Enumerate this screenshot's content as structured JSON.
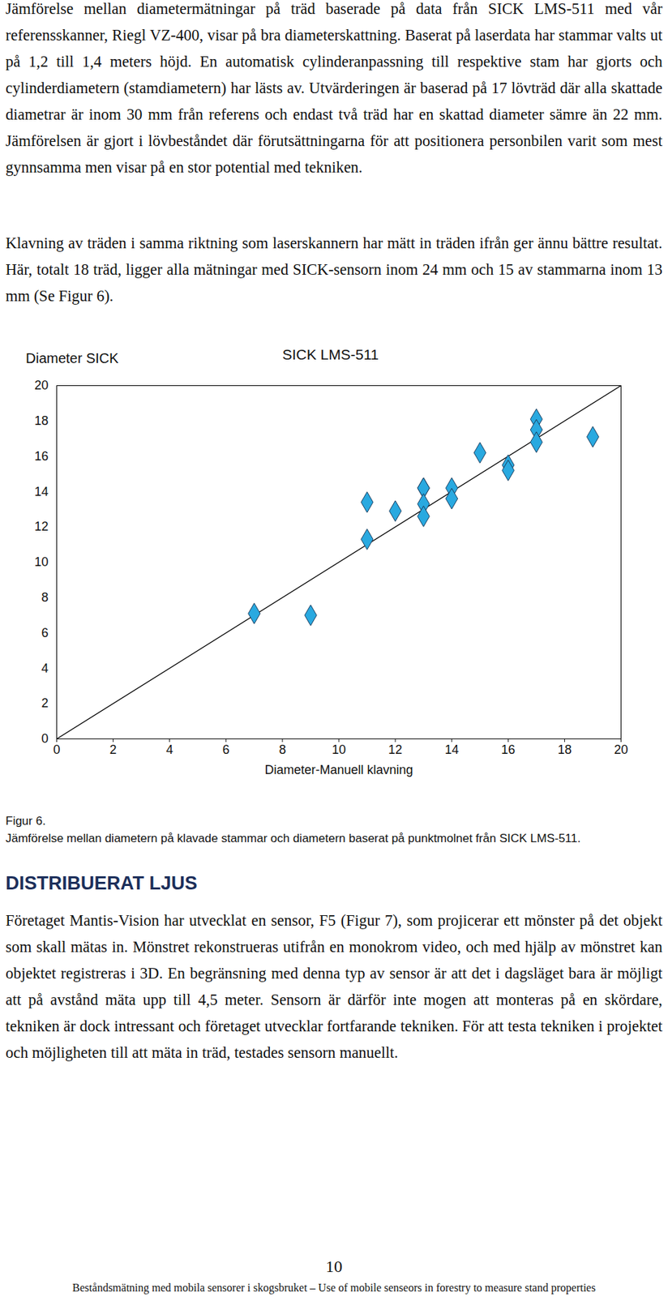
{
  "document": {
    "paragraphs_before": [
      "Jämförelse mellan diametermätningar på träd baserade på data från SICK LMS-511 med vår referensskanner, Riegl VZ-400, visar på bra diameterskattning. Baserat på laserdata har stammar valts ut på 1,2 till 1,4 meters höjd. En automatisk cylinderanpassning till respektive stam har gjorts och cylinderdiametern (stamdiametern) har lästs av. Utvärderingen är baserad på 17 lövträd där alla skattade diametrar är inom 30 mm från referens och endast två träd har en skattad diameter sämre än 22 mm. Jämförelsen är gjort i lövbeståndet där förutsättningarna för att positionera personbilen varit som mest gynnsamma men visar på en stor potential med tekniken.",
      "Klavning av träden i samma riktning som laserskannern har mätt in träden ifrån ger ännu bättre resultat. Här, totalt 18 träd, ligger alla mätningar med SICK-sensorn inom 24 mm och 15 av stammarna inom 13 mm (Se Figur 6)."
    ],
    "figure": {
      "label": "Figur 6.",
      "caption": "Jämförelse mellan diametern på klavade stammar och diametern baserat på punktmolnet från SICK LMS-511."
    },
    "heading": "DISTRIBUERAT LJUS",
    "paragraphs_after": [
      "Företaget Mantis-Vision har utvecklat en sensor, F5 (Figur 7), som projicerar ett mönster på det objekt som skall mätas in. Mönstret rekonstrueras utifrån en monokrom video, och med hjälp av mönstret kan objektet registreras i 3D. En begränsning med denna typ av sensor är att det i dagsläget bara är möjligt att på avstånd mäta upp till 4,5 meter. Sensorn är därför inte mogen att monteras på en skördare, tekniken är dock intressant och företaget utvecklar fortfarande tekniken. För att testa tekniken i projektet och möjligheten till att mäta in träd, testades sensorn manuellt."
    ],
    "footer": {
      "page_number": 10,
      "text": "Beståndsmätning med mobila sensorer i skogsbruket – Use of mobile senseors in forestry to measure stand properties"
    }
  },
  "chart_data": {
    "type": "scatter",
    "title": "SICK LMS-511",
    "x_label": "Diameter-Manuell klavning",
    "y_label": "Diameter SICK",
    "x": [
      7,
      9,
      11,
      11,
      12,
      13,
      13,
      13,
      13,
      14,
      14,
      15,
      16,
      16,
      17,
      17,
      17,
      19
    ],
    "values": [
      7.1,
      7.0,
      11.3,
      13.4,
      12.9,
      14.2,
      14.2,
      13.3,
      12.6,
      14.2,
      13.6,
      16.2,
      15.5,
      15.2,
      18.1,
      17.5,
      16.8,
      17.1
    ],
    "color": "#29a9e0",
    "marker": "diamond",
    "reference_line": {
      "x": [
        0,
        20
      ],
      "y": [
        0,
        20
      ]
    },
    "xlim": [
      0,
      20
    ],
    "ylim": [
      0,
      20
    ],
    "xticks": [
      0,
      2,
      4,
      6,
      8,
      10,
      12,
      14,
      16,
      18,
      20
    ],
    "yticks": [
      0,
      2,
      4,
      6,
      8,
      10,
      12,
      14,
      16,
      18,
      20
    ],
    "grid": false
  }
}
